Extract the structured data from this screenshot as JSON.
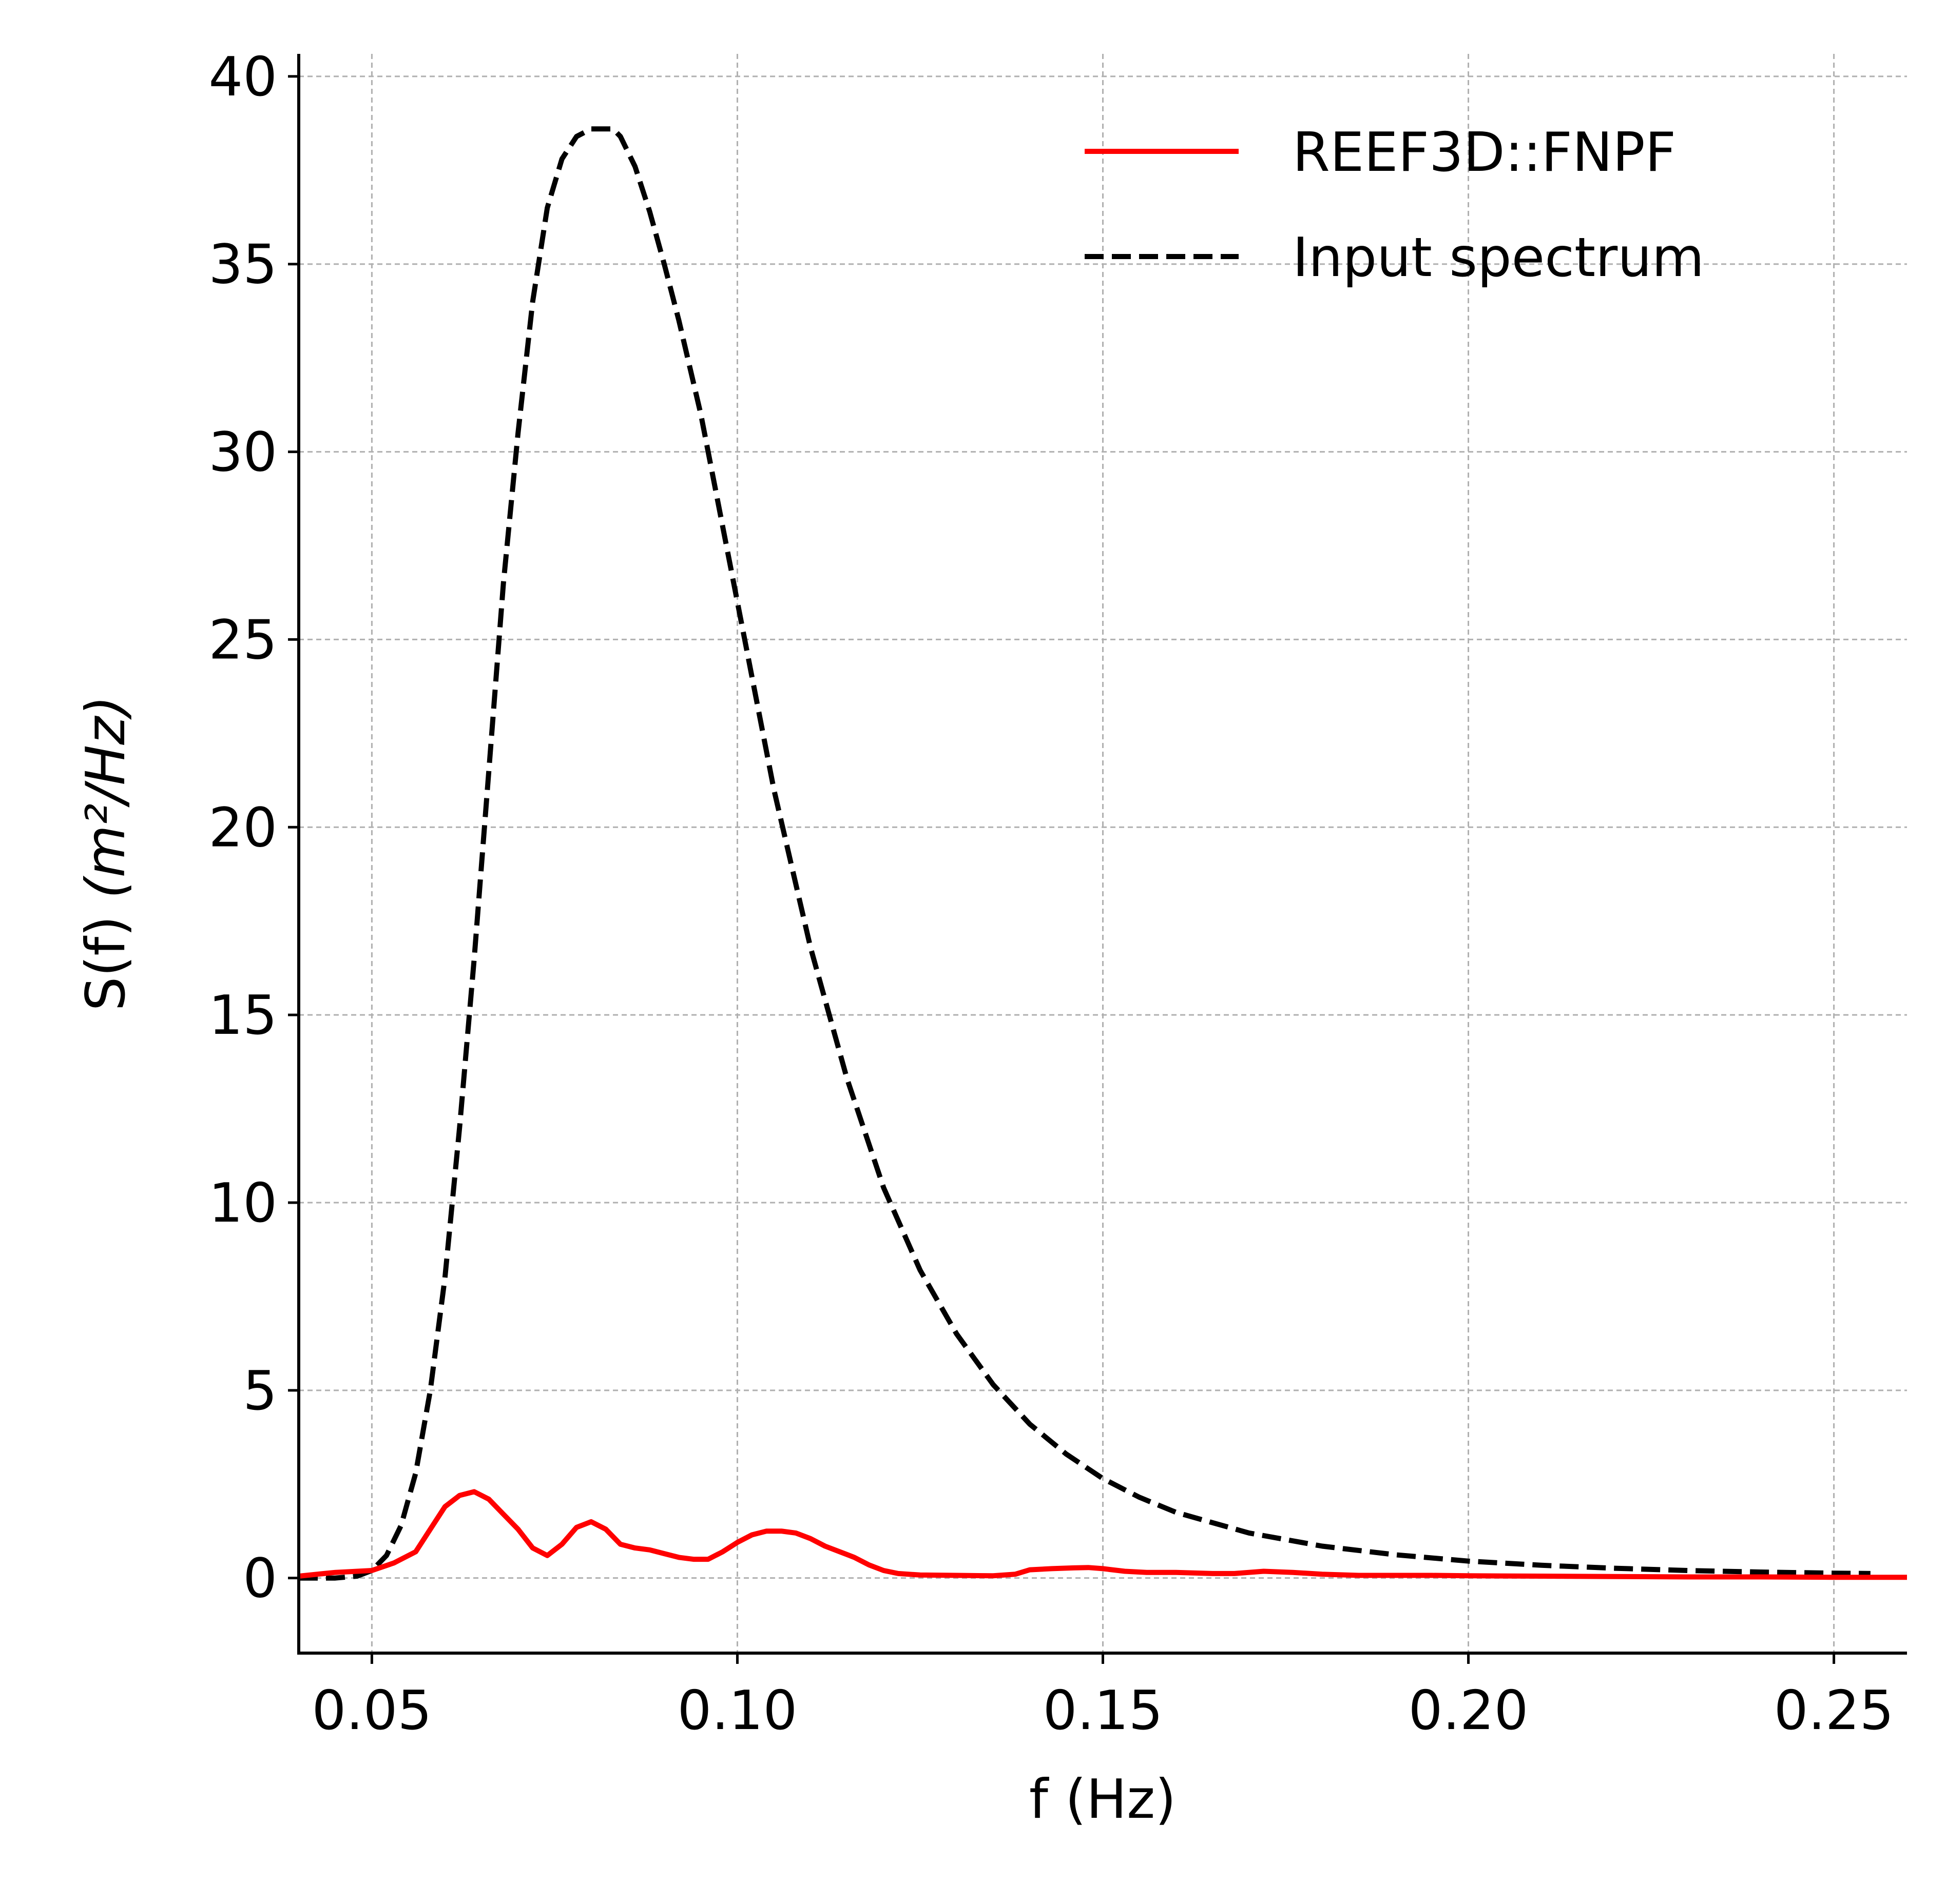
{
  "chart_data": {
    "type": "line",
    "title": "",
    "xlabel": "f (Hz)",
    "ylabel_prefix": "S(f) ",
    "ylabel_math": "(m²/Hz)",
    "xlim": [
      0.04,
      0.26
    ],
    "ylim": [
      -2,
      40.6
    ],
    "xticks": [
      0.05,
      0.1,
      0.15,
      0.2,
      0.25
    ],
    "xtick_labels": [
      "0.05",
      "0.10",
      "0.15",
      "0.20",
      "0.25"
    ],
    "yticks": [
      0,
      5,
      10,
      15,
      20,
      25,
      30,
      35,
      40
    ],
    "ytick_labels": [
      "0",
      "5",
      "10",
      "15",
      "20",
      "25",
      "30",
      "35",
      "40"
    ],
    "grid": true,
    "legend_position": "top-right",
    "series": [
      {
        "name": "REEF3D::FNPF",
        "color": "#ff0000",
        "style": "solid",
        "x": [
          0.04,
          0.045,
          0.05,
          0.053,
          0.056,
          0.058,
          0.06,
          0.062,
          0.064,
          0.066,
          0.068,
          0.07,
          0.072,
          0.074,
          0.076,
          0.078,
          0.08,
          0.082,
          0.084,
          0.086,
          0.088,
          0.09,
          0.092,
          0.094,
          0.096,
          0.098,
          0.1,
          0.102,
          0.104,
          0.106,
          0.108,
          0.11,
          0.112,
          0.114,
          0.116,
          0.118,
          0.12,
          0.122,
          0.125,
          0.13,
          0.135,
          0.138,
          0.14,
          0.143,
          0.146,
          0.148,
          0.15,
          0.153,
          0.156,
          0.16,
          0.165,
          0.168,
          0.172,
          0.176,
          0.18,
          0.185,
          0.19,
          0.195,
          0.2,
          0.21,
          0.22,
          0.23,
          0.24,
          0.25,
          0.26
        ],
        "y": [
          0.05,
          0.15,
          0.2,
          0.4,
          0.7,
          1.3,
          1.9,
          2.2,
          2.3,
          2.1,
          1.7,
          1.3,
          0.8,
          0.6,
          0.9,
          1.35,
          1.5,
          1.3,
          0.9,
          0.8,
          0.75,
          0.65,
          0.55,
          0.5,
          0.5,
          0.7,
          0.95,
          1.15,
          1.25,
          1.25,
          1.2,
          1.05,
          0.85,
          0.7,
          0.55,
          0.35,
          0.2,
          0.12,
          0.08,
          0.07,
          0.06,
          0.1,
          0.22,
          0.25,
          0.27,
          0.28,
          0.25,
          0.18,
          0.15,
          0.15,
          0.12,
          0.12,
          0.18,
          0.15,
          0.1,
          0.07,
          0.07,
          0.07,
          0.06,
          0.05,
          0.04,
          0.03,
          0.03,
          0.02,
          0.02
        ]
      },
      {
        "name": "Input spectrum",
        "color": "#000000",
        "style": "dashed",
        "x": [
          0.04,
          0.045,
          0.048,
          0.05,
          0.052,
          0.054,
          0.056,
          0.058,
          0.06,
          0.062,
          0.064,
          0.066,
          0.068,
          0.07,
          0.072,
          0.074,
          0.076,
          0.078,
          0.08,
          0.082,
          0.083,
          0.084,
          0.086,
          0.088,
          0.09,
          0.092,
          0.095,
          0.098,
          0.1,
          0.105,
          0.11,
          0.115,
          0.12,
          0.125,
          0.13,
          0.135,
          0.14,
          0.145,
          0.15,
          0.155,
          0.16,
          0.17,
          0.18,
          0.19,
          0.2,
          0.21,
          0.22,
          0.23,
          0.24,
          0.25,
          0.255
        ],
        "y": [
          0.0,
          0.0,
          0.05,
          0.2,
          0.6,
          1.4,
          2.8,
          5.0,
          8.0,
          12.0,
          16.5,
          21.5,
          26.5,
          30.5,
          34.0,
          36.5,
          37.8,
          38.4,
          38.6,
          38.6,
          38.6,
          38.4,
          37.6,
          36.4,
          35.0,
          33.5,
          31.0,
          28.0,
          26.0,
          21.0,
          16.8,
          13.3,
          10.4,
          8.2,
          6.5,
          5.15,
          4.1,
          3.3,
          2.65,
          2.15,
          1.75,
          1.2,
          0.85,
          0.62,
          0.45,
          0.34,
          0.26,
          0.2,
          0.16,
          0.13,
          0.12
        ]
      }
    ]
  },
  "styles": {
    "axis_color": "#000000",
    "grid_color": "#b0b0b0",
    "background": "#ffffff"
  }
}
